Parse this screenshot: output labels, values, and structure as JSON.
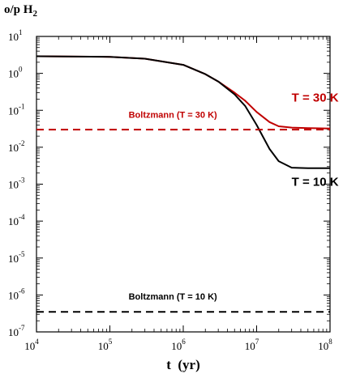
{
  "chart_data": {
    "type": "line",
    "ylabel": "o/p H",
    "ylabel_sub": "2",
    "xlabel": "t  (yr)",
    "xscale": "log",
    "yscale": "log",
    "xlim": [
      10000,
      100000000
    ],
    "ylim": [
      1e-07,
      10
    ],
    "x_ticks": [
      {
        "base": "10",
        "exp": "4",
        "value": 10000
      },
      {
        "base": "10",
        "exp": "5",
        "value": 100000
      },
      {
        "base": "10",
        "exp": "6",
        "value": 1000000
      },
      {
        "base": "10",
        "exp": "7",
        "value": 10000000
      },
      {
        "base": "10",
        "exp": "8",
        "value": 100000000
      }
    ],
    "y_ticks": [
      {
        "base": "10",
        "exp": "1",
        "value": 10
      },
      {
        "base": "10",
        "exp": "0",
        "value": 1
      },
      {
        "base": "10",
        "exp": "-1",
        "value": 0.1
      },
      {
        "base": "10",
        "exp": "-2",
        "value": 0.01
      },
      {
        "base": "10",
        "exp": "-3",
        "value": 0.001
      },
      {
        "base": "10",
        "exp": "-4",
        "value": 0.0001
      },
      {
        "base": "10",
        "exp": "-5",
        "value": 1e-05
      },
      {
        "base": "10",
        "exp": "-6",
        "value": 1e-06
      },
      {
        "base": "10",
        "exp": "-7",
        "value": 1e-07
      }
    ],
    "grid": false,
    "series": [
      {
        "name": "T = 30 K",
        "color": "#c00000",
        "style": "solid",
        "x": [
          10000,
          100000,
          300000,
          1000000,
          2000000,
          3000000,
          5000000,
          7000000,
          10000000,
          15000000,
          20000000,
          30000000,
          50000000,
          100000000
        ],
        "y": [
          2.9,
          2.8,
          2.5,
          1.7,
          0.95,
          0.6,
          0.3,
          0.18,
          0.09,
          0.048,
          0.037,
          0.034,
          0.033,
          0.032
        ]
      },
      {
        "name": "T = 10 K",
        "color": "#000000",
        "style": "solid",
        "x": [
          10000,
          100000,
          300000,
          1000000,
          2000000,
          3000000,
          5000000,
          7000000,
          10000000,
          15000000,
          20000000,
          30000000,
          50000000,
          100000000
        ],
        "y": [
          2.9,
          2.8,
          2.5,
          1.7,
          0.95,
          0.6,
          0.27,
          0.13,
          0.04,
          0.009,
          0.0042,
          0.0028,
          0.0027,
          0.0027
        ]
      },
      {
        "name": "Boltzmann (T = 30 K)",
        "color": "#c00000",
        "style": "dashed",
        "x": [
          10000,
          100000000
        ],
        "y": [
          0.03,
          0.03
        ]
      },
      {
        "name": "Boltzmann (T = 10 K)",
        "color": "#000000",
        "style": "dashed",
        "x": [
          10000,
          100000000
        ],
        "y": [
          3.5e-07,
          3.5e-07
        ]
      }
    ],
    "annotations": [
      {
        "text": "T = 30 K",
        "color": "#c00000",
        "x": 30000000,
        "y": 0.17
      },
      {
        "text": "T = 10 K",
        "color": "#000000",
        "x": 30000000,
        "y": 0.0009
      },
      {
        "text": "Boltzmann (T = 30 K)",
        "color": "#c00000",
        "x": 180000,
        "y": 0.063
      },
      {
        "text": "Boltzmann (T = 10 K)",
        "color": "#000000",
        "x": 180000,
        "y": 7.5e-07
      }
    ]
  }
}
